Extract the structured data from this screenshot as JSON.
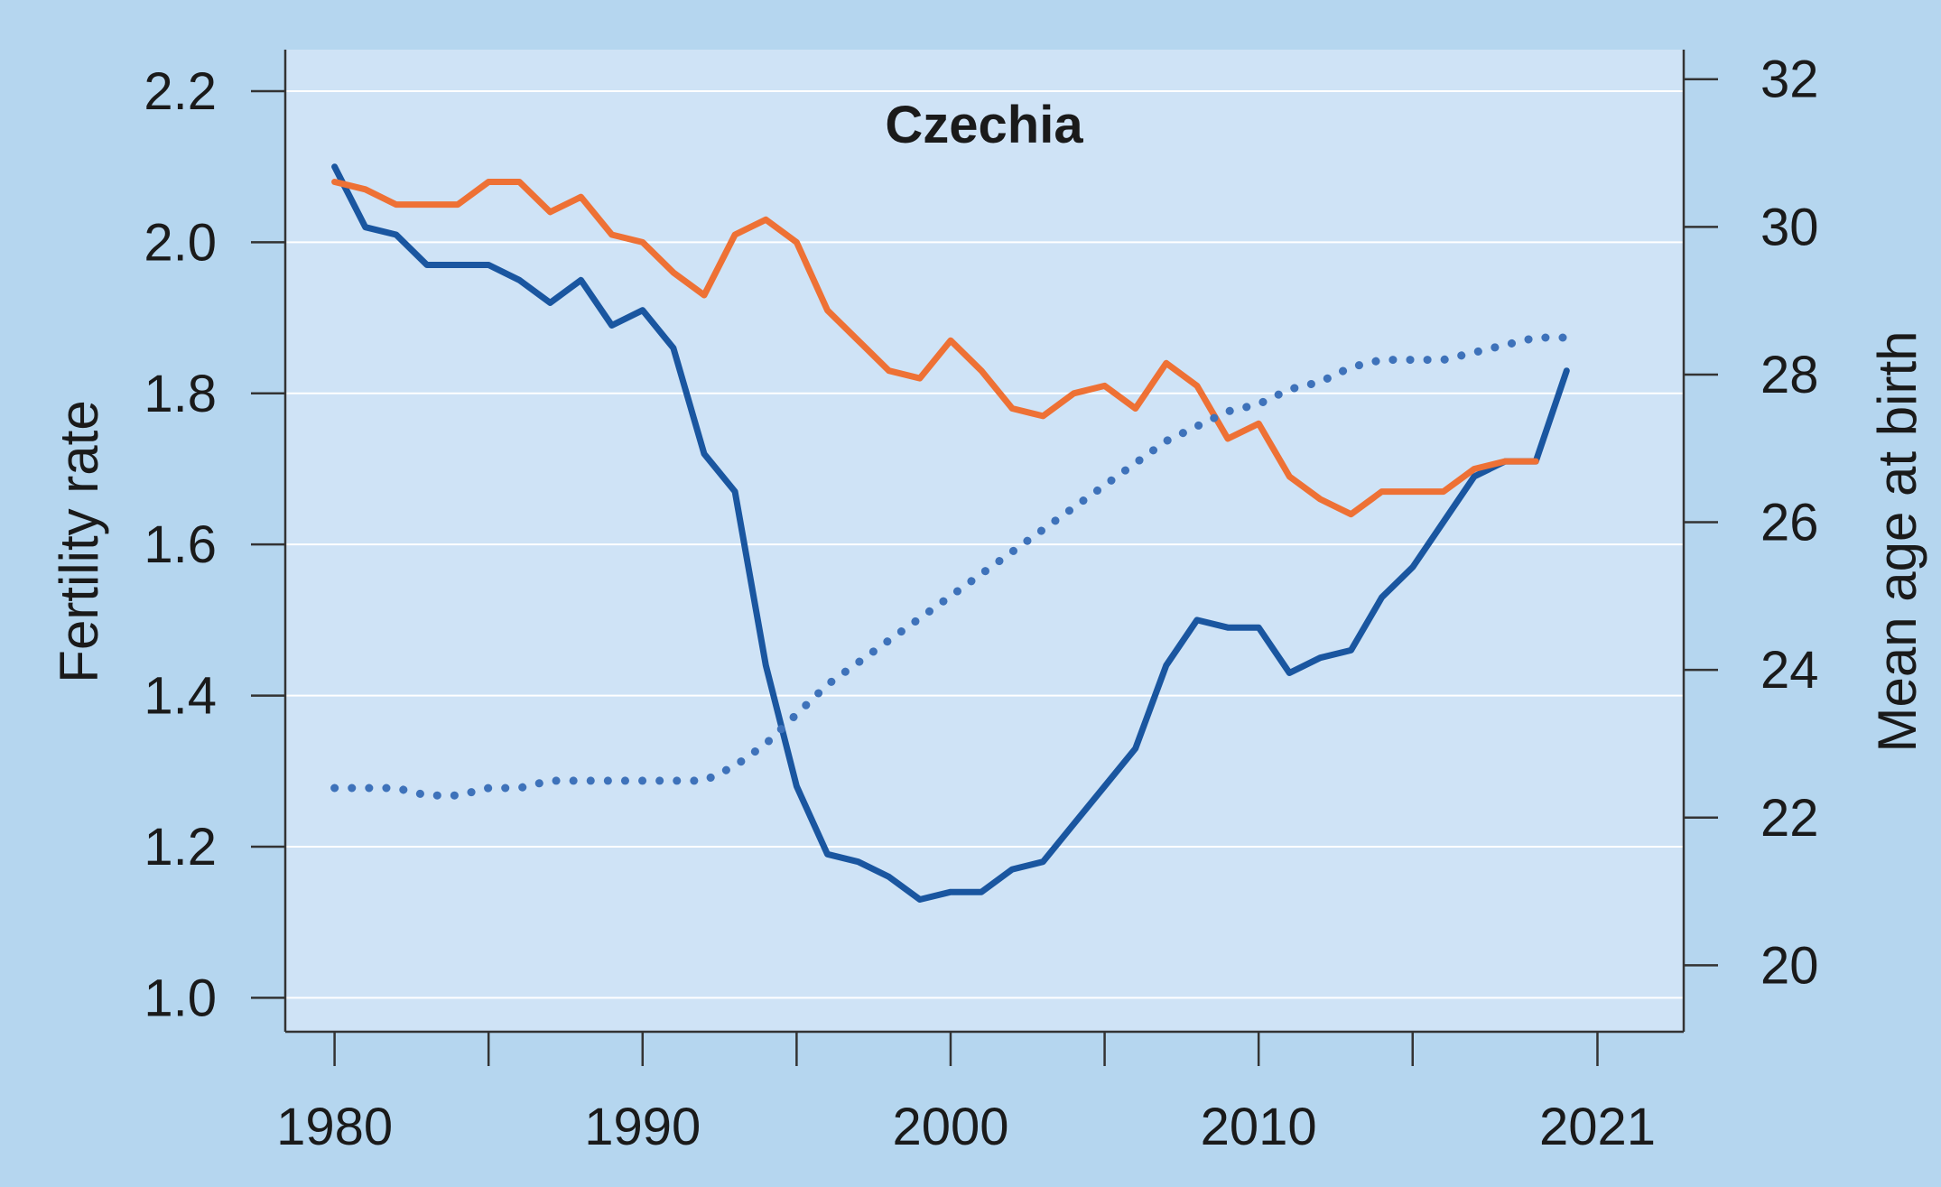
{
  "chart_data": {
    "type": "line",
    "title": "Czechia",
    "ylabel": "Fertility rate",
    "y2label": "Mean age at birth",
    "xlabel": "",
    "xlim": [
      1978.4,
      2023.8
    ],
    "ylim": [
      0.955,
      2.255
    ],
    "y2lim": [
      19.1,
      32.4
    ],
    "x_ticks": [
      1980,
      1985,
      1990,
      1995,
      2000,
      2005,
      2010,
      2015,
      2021
    ],
    "x_tick_labels": [
      "1980",
      "1990",
      "2000",
      "2010",
      "2021"
    ],
    "x_tick_label_years": [
      1980,
      1990,
      2000,
      2010,
      2021
    ],
    "y_ticks": [
      1.0,
      1.2,
      1.4,
      1.6,
      1.8,
      2.0,
      2.2
    ],
    "y_tick_labels": [
      "1.0",
      "1.2",
      "1.4",
      "1.6",
      "1.8",
      "2.0",
      "2.2"
    ],
    "y2_ticks": [
      20,
      22,
      24,
      26,
      28,
      30,
      32
    ],
    "y2_tick_labels": [
      "20",
      "22",
      "24",
      "26",
      "28",
      "30",
      "32"
    ],
    "grid": true,
    "colors": {
      "page_background": "#b5d6ef",
      "plot_background": "#cfe3f6",
      "gridline": "#ffffff",
      "axis": "#333333",
      "blue": "#1a56a0",
      "orange": "#ee7135",
      "dotted": "#3e72ba"
    },
    "series": [
      {
        "key": "blue_solid",
        "axis": "left",
        "style": "solid",
        "color": "#1a56a0",
        "x": [
          1980,
          1981,
          1982,
          1983,
          1984,
          1985,
          1986,
          1987,
          1988,
          1989,
          1990,
          1991,
          1992,
          1993,
          1994,
          1995,
          1996,
          1997,
          1998,
          1999,
          2000,
          2001,
          2002,
          2003,
          2004,
          2005,
          2006,
          2007,
          2008,
          2009,
          2010,
          2011,
          2012,
          2013,
          2014,
          2015,
          2016,
          2017,
          2018,
          2019,
          2020
        ],
        "values": [
          2.1,
          2.02,
          2.01,
          1.97,
          1.97,
          1.97,
          1.95,
          1.92,
          1.95,
          1.89,
          1.91,
          1.86,
          1.72,
          1.67,
          1.44,
          1.28,
          1.19,
          1.18,
          1.16,
          1.13,
          1.14,
          1.14,
          1.17,
          1.18,
          1.23,
          1.28,
          1.33,
          1.44,
          1.5,
          1.49,
          1.49,
          1.43,
          1.45,
          1.46,
          1.53,
          1.57,
          1.63,
          1.69,
          1.71,
          1.71,
          1.83
        ]
      },
      {
        "key": "orange_solid",
        "axis": "left",
        "style": "solid",
        "color": "#ee7135",
        "x": [
          1980,
          1981,
          1982,
          1983,
          1984,
          1985,
          1986,
          1987,
          1988,
          1989,
          1990,
          1991,
          1992,
          1993,
          1994,
          1995,
          1996,
          1997,
          1998,
          1999,
          2000,
          2001,
          2002,
          2003,
          2004,
          2005,
          2006,
          2007,
          2008,
          2009,
          2010,
          2011,
          2012,
          2013,
          2014,
          2015,
          2016,
          2017,
          2018,
          2019
        ],
        "values": [
          2.08,
          2.07,
          2.05,
          2.05,
          2.05,
          2.08,
          2.08,
          2.04,
          2.06,
          2.01,
          2.0,
          1.96,
          1.93,
          2.01,
          2.03,
          2.0,
          1.91,
          1.87,
          1.83,
          1.82,
          1.87,
          1.83,
          1.78,
          1.77,
          1.8,
          1.81,
          1.78,
          1.84,
          1.81,
          1.74,
          1.76,
          1.69,
          1.66,
          1.64,
          1.67,
          1.67,
          1.67,
          1.7,
          1.71,
          1.71
        ]
      },
      {
        "key": "blue_dotted",
        "axis": "right",
        "style": "dotted",
        "color": "#3e72ba",
        "x": [
          1980,
          1981,
          1982,
          1983,
          1984,
          1985,
          1986,
          1987,
          1988,
          1989,
          1990,
          1991,
          1992,
          1993,
          1994,
          1995,
          1996,
          1997,
          1998,
          1999,
          2000,
          2001,
          2002,
          2003,
          2004,
          2005,
          2006,
          2007,
          2008,
          2009,
          2010,
          2011,
          2012,
          2013,
          2014,
          2015,
          2016,
          2017,
          2018,
          2019,
          2020
        ],
        "values": [
          22.4,
          22.4,
          22.4,
          22.3,
          22.3,
          22.4,
          22.4,
          22.5,
          22.5,
          22.5,
          22.5,
          22.5,
          22.5,
          22.7,
          23.0,
          23.4,
          23.8,
          24.1,
          24.4,
          24.7,
          25.0,
          25.3,
          25.6,
          25.9,
          26.2,
          26.5,
          26.8,
          27.1,
          27.3,
          27.5,
          27.6,
          27.8,
          27.9,
          28.1,
          28.2,
          28.2,
          28.2,
          28.3,
          28.4,
          28.5,
          28.5
        ]
      }
    ]
  }
}
